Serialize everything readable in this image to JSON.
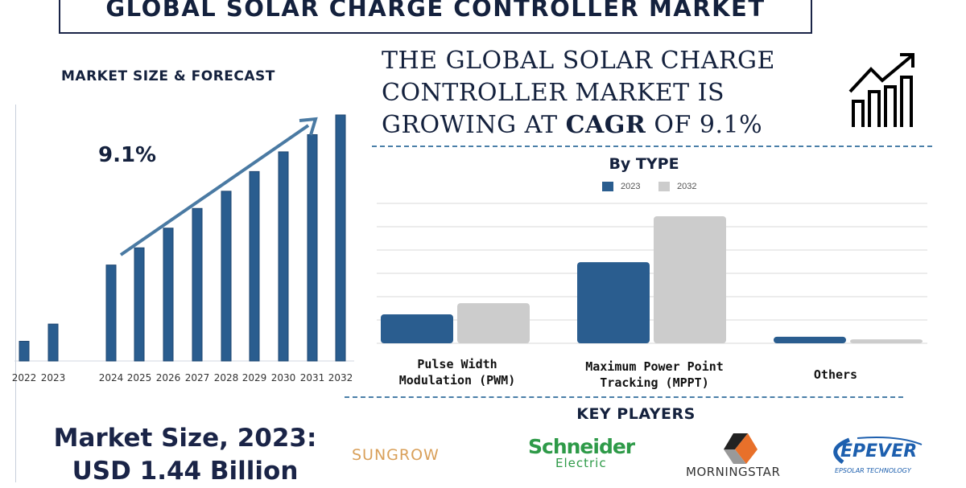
{
  "title": "GLOBAL SOLAR CHARGE CONTROLLER MARKET",
  "left_panel": {
    "heading": "MARKET SIZE & FORECAST",
    "cagr_label": "9.1%"
  },
  "headline": {
    "line1": "THE GLOBAL SOLAR CHARGE",
    "line2": "CONTROLLER MARKET IS",
    "line3_pre": "GROWING AT ",
    "line3_bold": "CAGR",
    "line3_post": " OF 9.1%",
    "icon": "growth-chart-icon"
  },
  "market_size": {
    "line1": "Market Size, 2023:",
    "line2": "USD 1.44 Billion"
  },
  "key_players": {
    "heading": "KEY PLAYERS",
    "logos": [
      "SUNGROW",
      "Schneider",
      "Electric",
      "MORNINGSTAR",
      "EPEVER",
      "EPSOLAR TECHNOLOGY"
    ]
  },
  "colors": {
    "bar": "#2a5d8f",
    "bar_2032": "#cccccc",
    "navy": "#14213d",
    "arrow": "#4a7aa3"
  },
  "chart_data": [
    {
      "type": "bar",
      "title": "MARKET SIZE & FORECAST",
      "categories": [
        "2022",
        "2023",
        "2024",
        "2025",
        "2026",
        "2027",
        "2028",
        "2029",
        "2030",
        "2031",
        "2032"
      ],
      "values": [
        8,
        15,
        39,
        46,
        54,
        62,
        69,
        77,
        85,
        92,
        100
      ],
      "annotation": "9.1%",
      "grid": false,
      "y_axis_labels": false
    },
    {
      "type": "bar",
      "title": "By TYPE",
      "categories": [
        "Pulse Width Modulation (PWM)",
        "Maximum Power Point Tracking (MPPT)",
        "Others"
      ],
      "cat_lines": [
        [
          "Pulse Width",
          "Modulation (PWM)"
        ],
        [
          "Maximum Power Point",
          "Tracking (MPPT)"
        ],
        [
          "Others"
        ]
      ],
      "series": [
        {
          "name": "2023",
          "values": [
            1.24,
            3.48,
            0.28
          ]
        },
        {
          "name": "2032",
          "values": [
            1.72,
            5.45,
            0.17
          ]
        }
      ],
      "ylim": [
        0,
        6
      ],
      "grid": true,
      "legend": "top-center",
      "y_axis_labels": false
    }
  ]
}
